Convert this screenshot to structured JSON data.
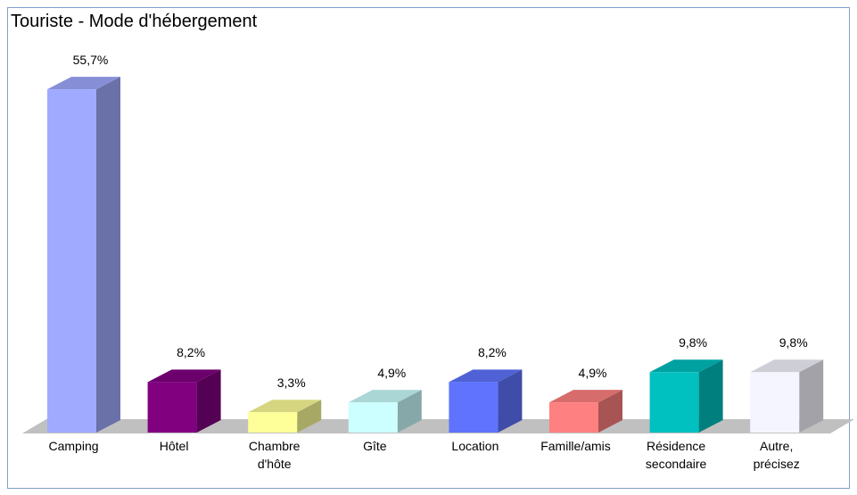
{
  "chart_data": {
    "type": "bar3d",
    "title": "Touriste - Mode d'hébergement",
    "categories": [
      "Camping",
      "Hôtel",
      "Chambre\nd'hôte",
      "Gîte",
      "Location",
      "Famille/amis",
      "Résidence\nsecondaire",
      "Autre,\nprécisez"
    ],
    "values": [
      55.7,
      8.2,
      3.3,
      4.9,
      8.2,
      4.9,
      9.8,
      9.8
    ],
    "value_labels": [
      "55,7%",
      "8,2%",
      "3,3%",
      "4,9%",
      "8,2%",
      "4,9%",
      "9,8%",
      "9,8%"
    ],
    "colors": [
      "#a0aaff",
      "#800080",
      "#ffff99",
      "#ccffff",
      "#5f73ff",
      "#ff8080",
      "#00c0c0",
      "#f5f5ff"
    ]
  }
}
